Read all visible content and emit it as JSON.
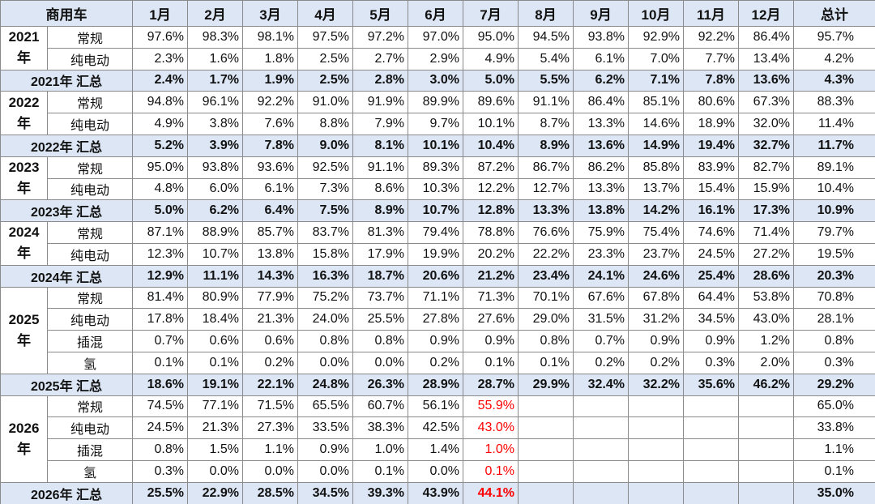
{
  "table": {
    "header": [
      "商用车",
      "1月",
      "2月",
      "3月",
      "4月",
      "5月",
      "6月",
      "7月",
      "8月",
      "9月",
      "10月",
      "11月",
      "12月",
      "总计"
    ],
    "groups": [
      {
        "year": "2021年",
        "rows": [
          {
            "type": "常规",
            "values": [
              "97.6%",
              "98.3%",
              "98.1%",
              "97.5%",
              "97.2%",
              "97.0%",
              "95.0%",
              "94.5%",
              "93.8%",
              "92.9%",
              "92.2%",
              "86.4%",
              "95.7%"
            ]
          },
          {
            "type": "纯电动",
            "values": [
              "2.3%",
              "1.6%",
              "1.8%",
              "2.5%",
              "2.7%",
              "2.9%",
              "4.9%",
              "5.4%",
              "6.1%",
              "7.0%",
              "7.7%",
              "13.4%",
              "4.2%"
            ]
          }
        ],
        "summary": {
          "label": "2021年 汇总",
          "values": [
            "2.4%",
            "1.7%",
            "1.9%",
            "2.5%",
            "2.8%",
            "3.0%",
            "5.0%",
            "5.5%",
            "6.2%",
            "7.1%",
            "7.8%",
            "13.6%",
            "4.3%"
          ]
        }
      },
      {
        "year": "2022年",
        "rows": [
          {
            "type": "常规",
            "values": [
              "94.8%",
              "96.1%",
              "92.2%",
              "91.0%",
              "91.9%",
              "89.9%",
              "89.6%",
              "91.1%",
              "86.4%",
              "85.1%",
              "80.6%",
              "67.3%",
              "88.3%"
            ]
          },
          {
            "type": "纯电动",
            "values": [
              "4.9%",
              "3.8%",
              "7.6%",
              "8.8%",
              "7.9%",
              "9.7%",
              "10.1%",
              "8.7%",
              "13.3%",
              "14.6%",
              "18.9%",
              "32.0%",
              "11.4%"
            ]
          }
        ],
        "summary": {
          "label": "2022年 汇总",
          "values": [
            "5.2%",
            "3.9%",
            "7.8%",
            "9.0%",
            "8.1%",
            "10.1%",
            "10.4%",
            "8.9%",
            "13.6%",
            "14.9%",
            "19.4%",
            "32.7%",
            "11.7%"
          ]
        }
      },
      {
        "year": "2023年",
        "rows": [
          {
            "type": "常规",
            "values": [
              "95.0%",
              "93.8%",
              "93.6%",
              "92.5%",
              "91.1%",
              "89.3%",
              "87.2%",
              "86.7%",
              "86.2%",
              "85.8%",
              "83.9%",
              "82.7%",
              "89.1%"
            ]
          },
          {
            "type": "纯电动",
            "values": [
              "4.8%",
              "6.0%",
              "6.1%",
              "7.3%",
              "8.6%",
              "10.3%",
              "12.2%",
              "12.7%",
              "13.3%",
              "13.7%",
              "15.4%",
              "15.9%",
              "10.4%"
            ]
          }
        ],
        "summary": {
          "label": "2023年 汇总",
          "values": [
            "5.0%",
            "6.2%",
            "6.4%",
            "7.5%",
            "8.9%",
            "10.7%",
            "12.8%",
            "13.3%",
            "13.8%",
            "14.2%",
            "16.1%",
            "17.3%",
            "10.9%"
          ]
        }
      },
      {
        "year": "2024年",
        "rows": [
          {
            "type": "常规",
            "values": [
              "87.1%",
              "88.9%",
              "85.7%",
              "83.7%",
              "81.3%",
              "79.4%",
              "78.8%",
              "76.6%",
              "75.9%",
              "75.4%",
              "74.6%",
              "71.4%",
              "79.7%"
            ]
          },
          {
            "type": "纯电动",
            "values": [
              "12.3%",
              "10.7%",
              "13.8%",
              "15.8%",
              "17.9%",
              "19.9%",
              "20.2%",
              "22.2%",
              "23.3%",
              "23.7%",
              "24.5%",
              "27.2%",
              "19.5%"
            ]
          }
        ],
        "summary": {
          "label": "2024年 汇总",
          "values": [
            "12.9%",
            "11.1%",
            "14.3%",
            "16.3%",
            "18.7%",
            "20.6%",
            "21.2%",
            "23.4%",
            "24.1%",
            "24.6%",
            "25.4%",
            "28.6%",
            "20.3%"
          ]
        }
      },
      {
        "year": "2025年",
        "rows": [
          {
            "type": "常规",
            "values": [
              "81.4%",
              "80.9%",
              "77.9%",
              "75.2%",
              "73.7%",
              "71.1%",
              "71.3%",
              "70.1%",
              "67.6%",
              "67.8%",
              "64.4%",
              "53.8%",
              "70.8%"
            ]
          },
          {
            "type": "纯电动",
            "values": [
              "17.8%",
              "18.4%",
              "21.3%",
              "24.0%",
              "25.5%",
              "27.8%",
              "27.6%",
              "29.0%",
              "31.5%",
              "31.2%",
              "34.5%",
              "43.0%",
              "28.1%"
            ]
          },
          {
            "type": "插混",
            "values": [
              "0.7%",
              "0.6%",
              "0.6%",
              "0.8%",
              "0.8%",
              "0.9%",
              "0.9%",
              "0.8%",
              "0.7%",
              "0.9%",
              "0.9%",
              "1.2%",
              "0.8%"
            ]
          },
          {
            "type": "氢",
            "values": [
              "0.1%",
              "0.1%",
              "0.2%",
              "0.0%",
              "0.0%",
              "0.2%",
              "0.1%",
              "0.1%",
              "0.2%",
              "0.2%",
              "0.3%",
              "2.0%",
              "0.3%"
            ]
          }
        ],
        "summary": {
          "label": "2025年 汇总",
          "values": [
            "18.6%",
            "19.1%",
            "22.1%",
            "24.8%",
            "26.3%",
            "28.9%",
            "28.7%",
            "29.9%",
            "32.4%",
            "32.2%",
            "35.6%",
            "46.2%",
            "29.2%"
          ]
        }
      },
      {
        "year": "2026年",
        "highlight_col": 6,
        "highlight_color": "#ff0000",
        "rows": [
          {
            "type": "常规",
            "values": [
              "74.5%",
              "77.1%",
              "71.5%",
              "65.5%",
              "60.7%",
              "56.1%",
              "55.9%",
              null,
              null,
              null,
              null,
              null,
              "65.0%"
            ]
          },
          {
            "type": "纯电动",
            "values": [
              "24.5%",
              "21.3%",
              "27.3%",
              "33.5%",
              "38.3%",
              "42.5%",
              "43.0%",
              null,
              null,
              null,
              null,
              null,
              "33.8%"
            ]
          },
          {
            "type": "插混",
            "values": [
              "0.8%",
              "1.5%",
              "1.1%",
              "0.9%",
              "1.0%",
              "1.4%",
              "1.0%",
              null,
              null,
              null,
              null,
              null,
              "1.1%"
            ]
          },
          {
            "type": "氢",
            "values": [
              "0.3%",
              "0.0%",
              "0.0%",
              "0.0%",
              "0.1%",
              "0.0%",
              "0.1%",
              null,
              null,
              null,
              null,
              null,
              "0.1%"
            ]
          }
        ],
        "summary": {
          "label": "2026年 汇总",
          "values": [
            "25.5%",
            "22.9%",
            "28.5%",
            "34.5%",
            "39.3%",
            "43.9%",
            "44.1%",
            null,
            null,
            null,
            null,
            null,
            "35.0%"
          ]
        }
      }
    ]
  }
}
